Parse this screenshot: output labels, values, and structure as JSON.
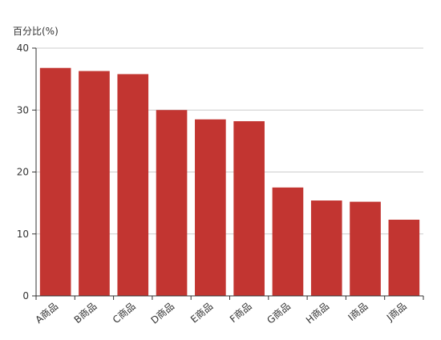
{
  "chart_data": {
    "type": "bar",
    "ylabel": "百分比(%)",
    "categories": [
      "A商品",
      "B商品",
      "C商品",
      "D商品",
      "E商品",
      "F商品",
      "G商品",
      "H商品",
      "I商品",
      "J商品"
    ],
    "values": [
      36.8,
      36.3,
      35.8,
      30.0,
      28.5,
      28.2,
      17.5,
      15.4,
      15.2,
      12.3
    ],
    "ylim": [
      0,
      40
    ],
    "yticks": [
      0,
      10,
      20,
      30,
      40
    ],
    "grid": true,
    "bar_color": "#c23531",
    "axis_color": "#333333",
    "grid_color": "#cccccc"
  }
}
